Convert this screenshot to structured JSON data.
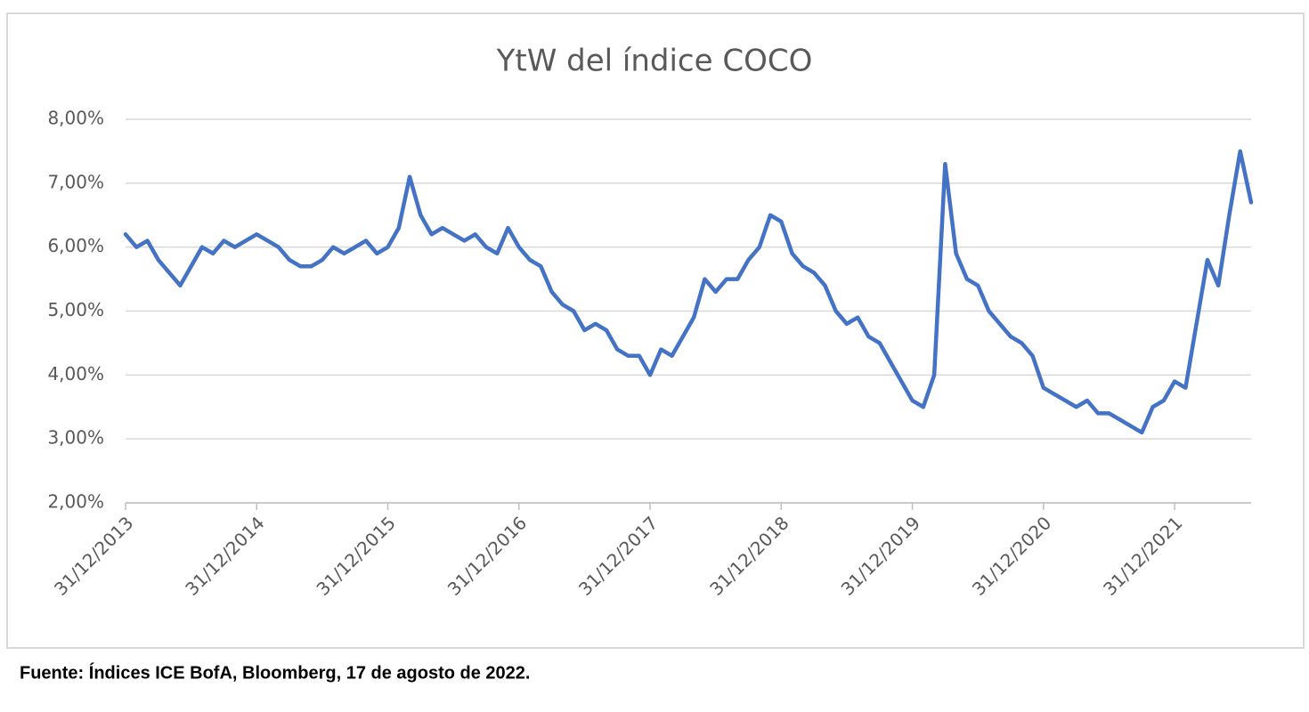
{
  "chart_data": {
    "type": "line",
    "title": "YtW del índice COCO",
    "source": "Fuente: Índices ICE BofA, Bloomberg, 17 de agosto de 2022.",
    "categories": [
      "31/12/2013",
      null,
      null,
      null,
      null,
      null,
      null,
      null,
      null,
      null,
      null,
      null,
      "31/12/2014",
      null,
      null,
      null,
      null,
      null,
      null,
      null,
      null,
      null,
      null,
      null,
      "31/12/2015",
      null,
      null,
      null,
      null,
      null,
      null,
      null,
      null,
      null,
      null,
      null,
      "31/12/2016",
      null,
      null,
      null,
      null,
      null,
      null,
      null,
      null,
      null,
      null,
      null,
      "31/12/2017",
      null,
      null,
      null,
      null,
      null,
      null,
      null,
      null,
      null,
      null,
      null,
      "31/12/2018",
      null,
      null,
      null,
      null,
      null,
      null,
      null,
      null,
      null,
      null,
      null,
      "31/12/2019",
      null,
      null,
      null,
      null,
      null,
      null,
      null,
      null,
      null,
      null,
      null,
      "31/12/2020",
      null,
      null,
      null,
      null,
      null,
      null,
      null,
      null,
      null,
      null,
      null,
      "31/12/2021",
      null,
      null,
      null,
      null,
      null,
      null,
      null
    ],
    "values": [
      6.2,
      6.0,
      6.1,
      5.8,
      5.6,
      5.4,
      5.7,
      6.0,
      5.9,
      6.1,
      6.0,
      6.1,
      6.2,
      6.1,
      6.0,
      5.8,
      5.7,
      5.7,
      5.8,
      6.0,
      5.9,
      6.0,
      6.1,
      5.9,
      6.0,
      6.3,
      7.1,
      6.5,
      6.2,
      6.3,
      6.2,
      6.1,
      6.2,
      6.0,
      5.9,
      6.3,
      6.0,
      5.8,
      5.7,
      5.3,
      5.1,
      5.0,
      4.7,
      4.8,
      4.7,
      4.4,
      4.3,
      4.3,
      4.0,
      4.4,
      4.3,
      4.6,
      4.9,
      5.5,
      5.3,
      5.5,
      5.5,
      5.8,
      6.0,
      6.5,
      6.4,
      5.9,
      5.7,
      5.6,
      5.4,
      5.0,
      4.8,
      4.9,
      4.6,
      4.5,
      4.2,
      3.9,
      3.6,
      3.5,
      4.0,
      7.3,
      5.9,
      5.5,
      5.4,
      5.0,
      4.8,
      4.6,
      4.5,
      4.3,
      3.8,
      3.7,
      3.6,
      3.5,
      3.6,
      3.4,
      3.4,
      3.3,
      3.2,
      3.1,
      3.5,
      3.6,
      3.9,
      3.8,
      4.8,
      5.8,
      5.4,
      6.5,
      7.5,
      6.7
    ],
    "color": "#4472c4",
    "ylim": [
      2,
      8
    ],
    "yticks": [
      {
        "value": 2,
        "label": "2,00%"
      },
      {
        "value": 3,
        "label": "3,00%"
      },
      {
        "value": 4,
        "label": "4,00%"
      },
      {
        "value": 5,
        "label": "5,00%"
      },
      {
        "value": 6,
        "label": "6,00%"
      },
      {
        "value": 7,
        "label": "7,00%"
      },
      {
        "value": 8,
        "label": "8,00%"
      }
    ],
    "grid": true
  }
}
